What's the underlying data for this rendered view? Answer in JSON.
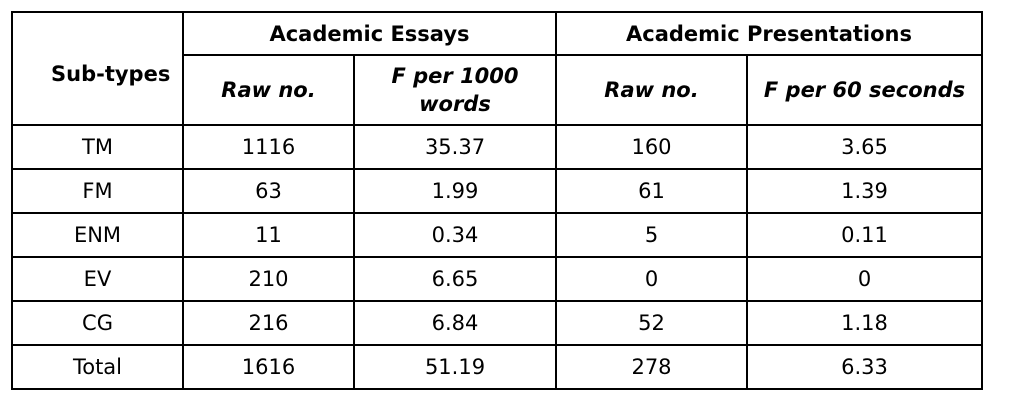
{
  "table": {
    "corner_header": "Sub-types",
    "group_headers": [
      "Academic Essays",
      "Academic Presentations"
    ],
    "sub_headers": [
      "Raw no.",
      "F per 1000 words",
      "Raw no.",
      "F per 60 seconds"
    ],
    "rows": [
      [
        "TM",
        "1116",
        "35.37",
        "160",
        "3.65"
      ],
      [
        "FM",
        "63",
        "1.99",
        "61",
        "1.39"
      ],
      [
        "ENM",
        "11",
        "0.34",
        "5",
        "0.11"
      ],
      [
        "EV",
        "210",
        "6.65",
        "0",
        "0"
      ],
      [
        "CG",
        "216",
        "6.84",
        "52",
        "1.18"
      ],
      [
        "Total",
        "1616",
        "51.19",
        "278",
        "6.33"
      ]
    ]
  }
}
